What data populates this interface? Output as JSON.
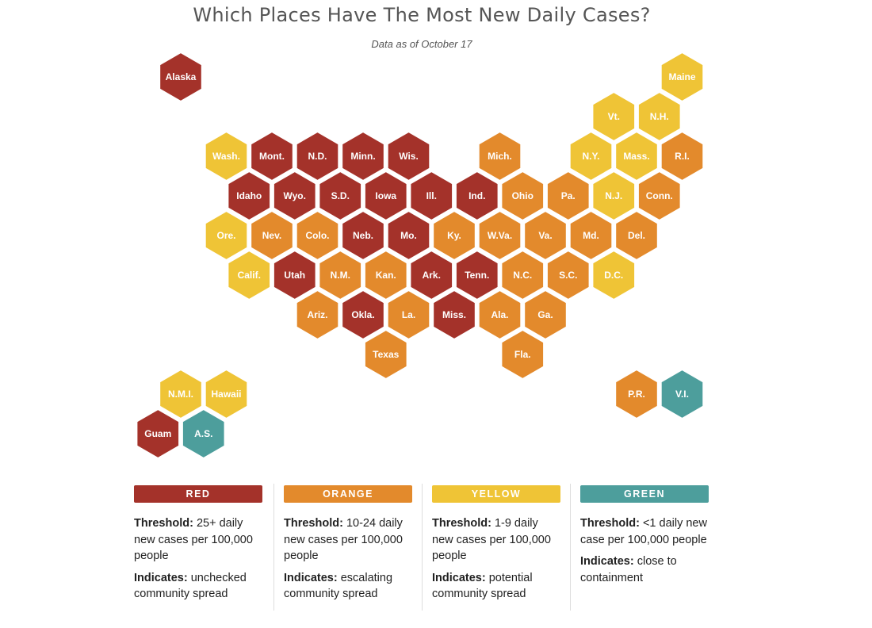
{
  "title": "Which Places Have The Most New Daily Cases?",
  "subtitle": "Data as of October 17",
  "colors": {
    "red": "#a4322a",
    "orange": "#e38a2c",
    "yellow": "#efc436",
    "green": "#4d9e9c"
  },
  "places": [
    {
      "label": "Alaska",
      "level": "red",
      "col": 0,
      "row": 0
    },
    {
      "label": "Maine",
      "level": "yellow",
      "col": 11,
      "row": 0
    },
    {
      "label": "Vt.",
      "level": "yellow",
      "col": 9.5,
      "row": 1
    },
    {
      "label": "N.H.",
      "level": "yellow",
      "col": 10.5,
      "row": 1
    },
    {
      "label": "Wash.",
      "level": "yellow",
      "col": 1,
      "row": 2
    },
    {
      "label": "Mont.",
      "level": "red",
      "col": 2,
      "row": 2
    },
    {
      "label": "N.D.",
      "level": "red",
      "col": 3,
      "row": 2
    },
    {
      "label": "Minn.",
      "level": "red",
      "col": 4,
      "row": 2
    },
    {
      "label": "Wis.",
      "level": "red",
      "col": 5,
      "row": 2
    },
    {
      "label": "Mich.",
      "level": "orange",
      "col": 7,
      "row": 2
    },
    {
      "label": "N.Y.",
      "level": "yellow",
      "col": 9,
      "row": 2
    },
    {
      "label": "Mass.",
      "level": "yellow",
      "col": 10,
      "row": 2
    },
    {
      "label": "R.I.",
      "level": "orange",
      "col": 11,
      "row": 2
    },
    {
      "label": "Idaho",
      "level": "red",
      "col": 1.5,
      "row": 3
    },
    {
      "label": "Wyo.",
      "level": "red",
      "col": 2.5,
      "row": 3
    },
    {
      "label": "S.D.",
      "level": "red",
      "col": 3.5,
      "row": 3
    },
    {
      "label": "Iowa",
      "level": "red",
      "col": 4.5,
      "row": 3
    },
    {
      "label": "Ill.",
      "level": "red",
      "col": 5.5,
      "row": 3
    },
    {
      "label": "Ind.",
      "level": "red",
      "col": 6.5,
      "row": 3
    },
    {
      "label": "Ohio",
      "level": "orange",
      "col": 7.5,
      "row": 3
    },
    {
      "label": "Pa.",
      "level": "orange",
      "col": 8.5,
      "row": 3
    },
    {
      "label": "N.J.",
      "level": "yellow",
      "col": 9.5,
      "row": 3
    },
    {
      "label": "Conn.",
      "level": "orange",
      "col": 10.5,
      "row": 3
    },
    {
      "label": "Ore.",
      "level": "yellow",
      "col": 1,
      "row": 4
    },
    {
      "label": "Nev.",
      "level": "orange",
      "col": 2,
      "row": 4
    },
    {
      "label": "Colo.",
      "level": "orange",
      "col": 3,
      "row": 4
    },
    {
      "label": "Neb.",
      "level": "red",
      "col": 4,
      "row": 4
    },
    {
      "label": "Mo.",
      "level": "red",
      "col": 5,
      "row": 4
    },
    {
      "label": "Ky.",
      "level": "orange",
      "col": 6,
      "row": 4
    },
    {
      "label": "W.Va.",
      "level": "orange",
      "col": 7,
      "row": 4
    },
    {
      "label": "Va.",
      "level": "orange",
      "col": 8,
      "row": 4
    },
    {
      "label": "Md.",
      "level": "orange",
      "col": 9,
      "row": 4
    },
    {
      "label": "Del.",
      "level": "orange",
      "col": 10,
      "row": 4
    },
    {
      "label": "Calif.",
      "level": "yellow",
      "col": 1.5,
      "row": 5
    },
    {
      "label": "Utah",
      "level": "red",
      "col": 2.5,
      "row": 5
    },
    {
      "label": "N.M.",
      "level": "orange",
      "col": 3.5,
      "row": 5
    },
    {
      "label": "Kan.",
      "level": "orange",
      "col": 4.5,
      "row": 5
    },
    {
      "label": "Ark.",
      "level": "red",
      "col": 5.5,
      "row": 5
    },
    {
      "label": "Tenn.",
      "level": "red",
      "col": 6.5,
      "row": 5
    },
    {
      "label": "N.C.",
      "level": "orange",
      "col": 7.5,
      "row": 5
    },
    {
      "label": "S.C.",
      "level": "orange",
      "col": 8.5,
      "row": 5
    },
    {
      "label": "D.C.",
      "level": "yellow",
      "col": 9.5,
      "row": 5
    },
    {
      "label": "Ariz.",
      "level": "orange",
      "col": 3,
      "row": 6
    },
    {
      "label": "Okla.",
      "level": "red",
      "col": 4,
      "row": 6
    },
    {
      "label": "La.",
      "level": "orange",
      "col": 5,
      "row": 6
    },
    {
      "label": "Miss.",
      "level": "red",
      "col": 6,
      "row": 6
    },
    {
      "label": "Ala.",
      "level": "orange",
      "col": 7,
      "row": 6
    },
    {
      "label": "Ga.",
      "level": "orange",
      "col": 8,
      "row": 6
    },
    {
      "label": "Texas",
      "level": "orange",
      "col": 4.5,
      "row": 7
    },
    {
      "label": "Fla.",
      "level": "orange",
      "col": 7.5,
      "row": 7
    },
    {
      "label": "N.M.I.",
      "level": "yellow",
      "col": 0,
      "row": 8
    },
    {
      "label": "Hawaii",
      "level": "yellow",
      "col": 1,
      "row": 8
    },
    {
      "label": "P.R.",
      "level": "orange",
      "col": 10,
      "row": 8
    },
    {
      "label": "V.I.",
      "level": "green",
      "col": 11,
      "row": 8
    },
    {
      "label": "Guam",
      "level": "red",
      "col": -0.5,
      "row": 9
    },
    {
      "label": "A.S.",
      "level": "green",
      "col": 0.5,
      "row": 9
    }
  ],
  "legend": [
    {
      "level": "red",
      "name": "RED",
      "threshold_label": "Threshold:",
      "threshold_text": " 25+ daily new cases per 100,000 people",
      "indicates_label": "Indicates:",
      "indicates_text": " unchecked community spread"
    },
    {
      "level": "orange",
      "name": "ORANGE",
      "threshold_label": "Threshold:",
      "threshold_text": " 10-24 daily new cases per 100,000 people",
      "indicates_label": "Indicates:",
      "indicates_text": " escalating community spread"
    },
    {
      "level": "yellow",
      "name": "YELLOW",
      "threshold_label": "Threshold:",
      "threshold_text": " 1-9 daily new cases per 100,000 people",
      "indicates_label": "Indicates:",
      "indicates_text": " potential community spread"
    },
    {
      "level": "green",
      "name": "GREEN",
      "threshold_label": "Threshold:",
      "threshold_text": " <1 daily new case per 100,000 people",
      "indicates_label": "Indicates:",
      "indicates_text": " close to containment"
    }
  ]
}
